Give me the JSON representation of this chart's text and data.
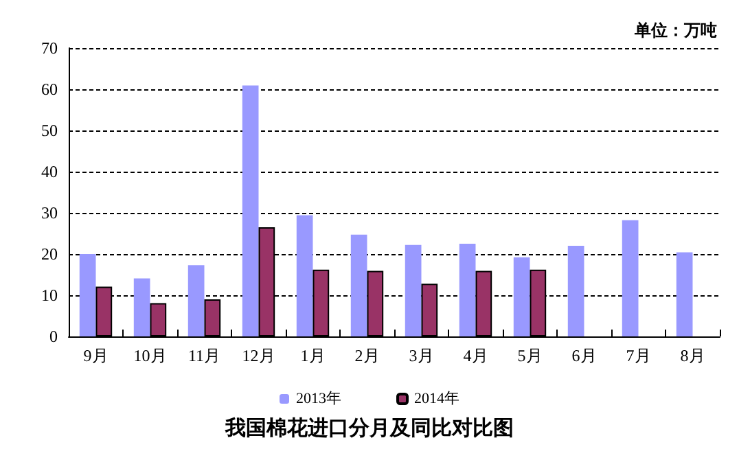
{
  "chart_data": {
    "type": "bar",
    "title": "我国棉花进口分月及同比对比图",
    "annotations": [
      "单位：万吨"
    ],
    "categories": [
      "9月",
      "10月",
      "11月",
      "12月",
      "1月",
      "2月",
      "3月",
      "4月",
      "5月",
      "6月",
      "7月",
      "8月"
    ],
    "series": [
      {
        "name": "2013年",
        "color": "#9999ff",
        "values": [
          20.0,
          14.1,
          17.3,
          60.9,
          29.4,
          24.7,
          22.2,
          22.5,
          19.2,
          22.0,
          28.2,
          20.4
        ]
      },
      {
        "name": "2014年",
        "color": "#993366",
        "values": [
          12.1,
          8.1,
          9.0,
          26.5,
          16.2,
          15.9,
          12.8,
          15.9,
          16.2,
          null,
          null,
          null
        ]
      }
    ],
    "ylim": [
      0,
      70
    ],
    "yticks": [
      0,
      10,
      20,
      30,
      40,
      50,
      60,
      70
    ],
    "grid": "y",
    "legend": "bottom"
  }
}
